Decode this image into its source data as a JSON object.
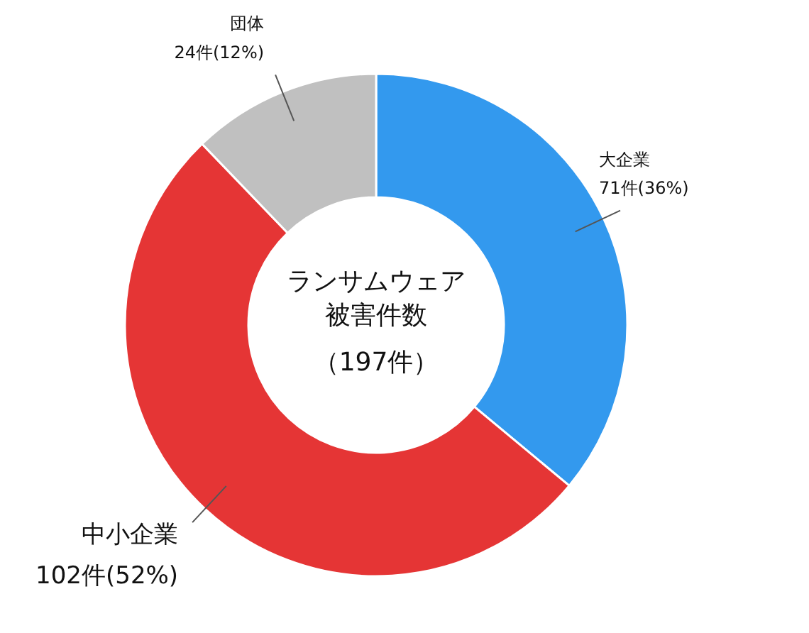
{
  "chart_data": {
    "type": "donut",
    "title": "ランサムウェア被害件数",
    "subtitle": "（197件）",
    "categories": [
      "大企業",
      "中小企業",
      "団体"
    ],
    "values": [
      71,
      102,
      24
    ],
    "value_labels": [
      "71件(36%)",
      "102件(52%)",
      "24件(12%)"
    ],
    "colors": [
      "#3399ee",
      "#e53535",
      "#c0c0c0"
    ]
  }
}
